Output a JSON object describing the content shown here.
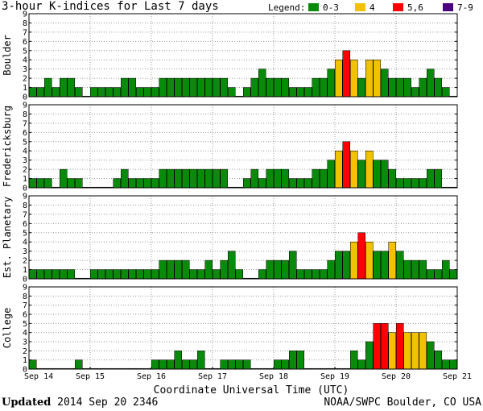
{
  "header": {
    "title": "3-hour K-indices for Last 7 days",
    "legend_label": "Legend:",
    "legend": [
      {
        "label": "0-3",
        "color": "#0a8a0a"
      },
      {
        "label": "4",
        "color": "#f2c200"
      },
      {
        "label": "5,6",
        "color": "#ff0000"
      },
      {
        "label": "7-9",
        "color": "#4b0082"
      }
    ]
  },
  "footer": {
    "updated_word": "Updated",
    "updated_time": "2014 Sep 20 2346",
    "credit": "NOAA/SWPC Boulder, CO USA"
  },
  "chart_data": {
    "type": "bar",
    "xlabel": "Coordinate Universal Time (UTC)",
    "x_ticks": [
      "Sep 14",
      "Sep 15",
      "Sep 16",
      "Sep 17",
      "Sep 18",
      "Sep 19",
      "Sep 20",
      "Sep 21"
    ],
    "ylim": [
      0,
      9
    ],
    "y_ticks": [
      0,
      1,
      2,
      3,
      4,
      5,
      6,
      7,
      8,
      9
    ],
    "bins_per_day": 8,
    "color_scale": [
      {
        "range": "0-3",
        "color": "#0a8a0a"
      },
      {
        "range": "4",
        "color": "#f2c200"
      },
      {
        "range": "5,6",
        "color": "#ff0000"
      },
      {
        "range": "7-9",
        "color": "#4b0082"
      }
    ],
    "series": [
      {
        "name": "Boulder",
        "values": [
          1,
          1,
          2,
          1,
          2,
          2,
          1,
          0,
          1,
          1,
          1,
          1,
          2,
          2,
          1,
          1,
          1,
          2,
          2,
          2,
          2,
          2,
          2,
          2,
          2,
          2,
          1,
          0,
          1,
          2,
          3,
          2,
          2,
          2,
          1,
          1,
          1,
          2,
          2,
          3,
          4,
          5,
          4,
          2,
          4,
          4,
          3,
          2,
          2,
          2,
          1,
          2,
          3,
          2,
          1,
          0
        ]
      },
      {
        "name": "Fredericksburg",
        "values": [
          1,
          1,
          1,
          0,
          2,
          1,
          1,
          0,
          0,
          0,
          0,
          1,
          2,
          1,
          1,
          1,
          1,
          2,
          2,
          2,
          2,
          2,
          2,
          2,
          2,
          2,
          0,
          0,
          1,
          2,
          1,
          2,
          2,
          2,
          1,
          1,
          1,
          2,
          2,
          3,
          4,
          5,
          4,
          3,
          4,
          3,
          3,
          2,
          1,
          1,
          1,
          1,
          2,
          2,
          0,
          0
        ]
      },
      {
        "name": "Est. Planetary",
        "values": [
          1,
          1,
          1,
          1,
          1,
          1,
          0,
          0,
          1,
          1,
          1,
          1,
          1,
          1,
          1,
          1,
          1,
          2,
          2,
          2,
          2,
          1,
          1,
          2,
          1,
          2,
          3,
          1,
          0,
          0,
          1,
          2,
          2,
          2,
          3,
          1,
          1,
          1,
          1,
          2,
          3,
          3,
          4,
          5,
          4,
          3,
          3,
          4,
          3,
          2,
          2,
          2,
          1,
          1,
          2,
          1
        ]
      },
      {
        "name": "College",
        "values": [
          1,
          0,
          0,
          0,
          0,
          0,
          1,
          0,
          0,
          0,
          0,
          0,
          0,
          0,
          0,
          0,
          1,
          1,
          1,
          2,
          1,
          1,
          2,
          0,
          0,
          1,
          1,
          1,
          1,
          0,
          0,
          0,
          1,
          1,
          2,
          2,
          0,
          0,
          0,
          0,
          0,
          0,
          2,
          1,
          3,
          5,
          5,
          4,
          5,
          4,
          4,
          4,
          3,
          2,
          1,
          1
        ]
      }
    ]
  }
}
